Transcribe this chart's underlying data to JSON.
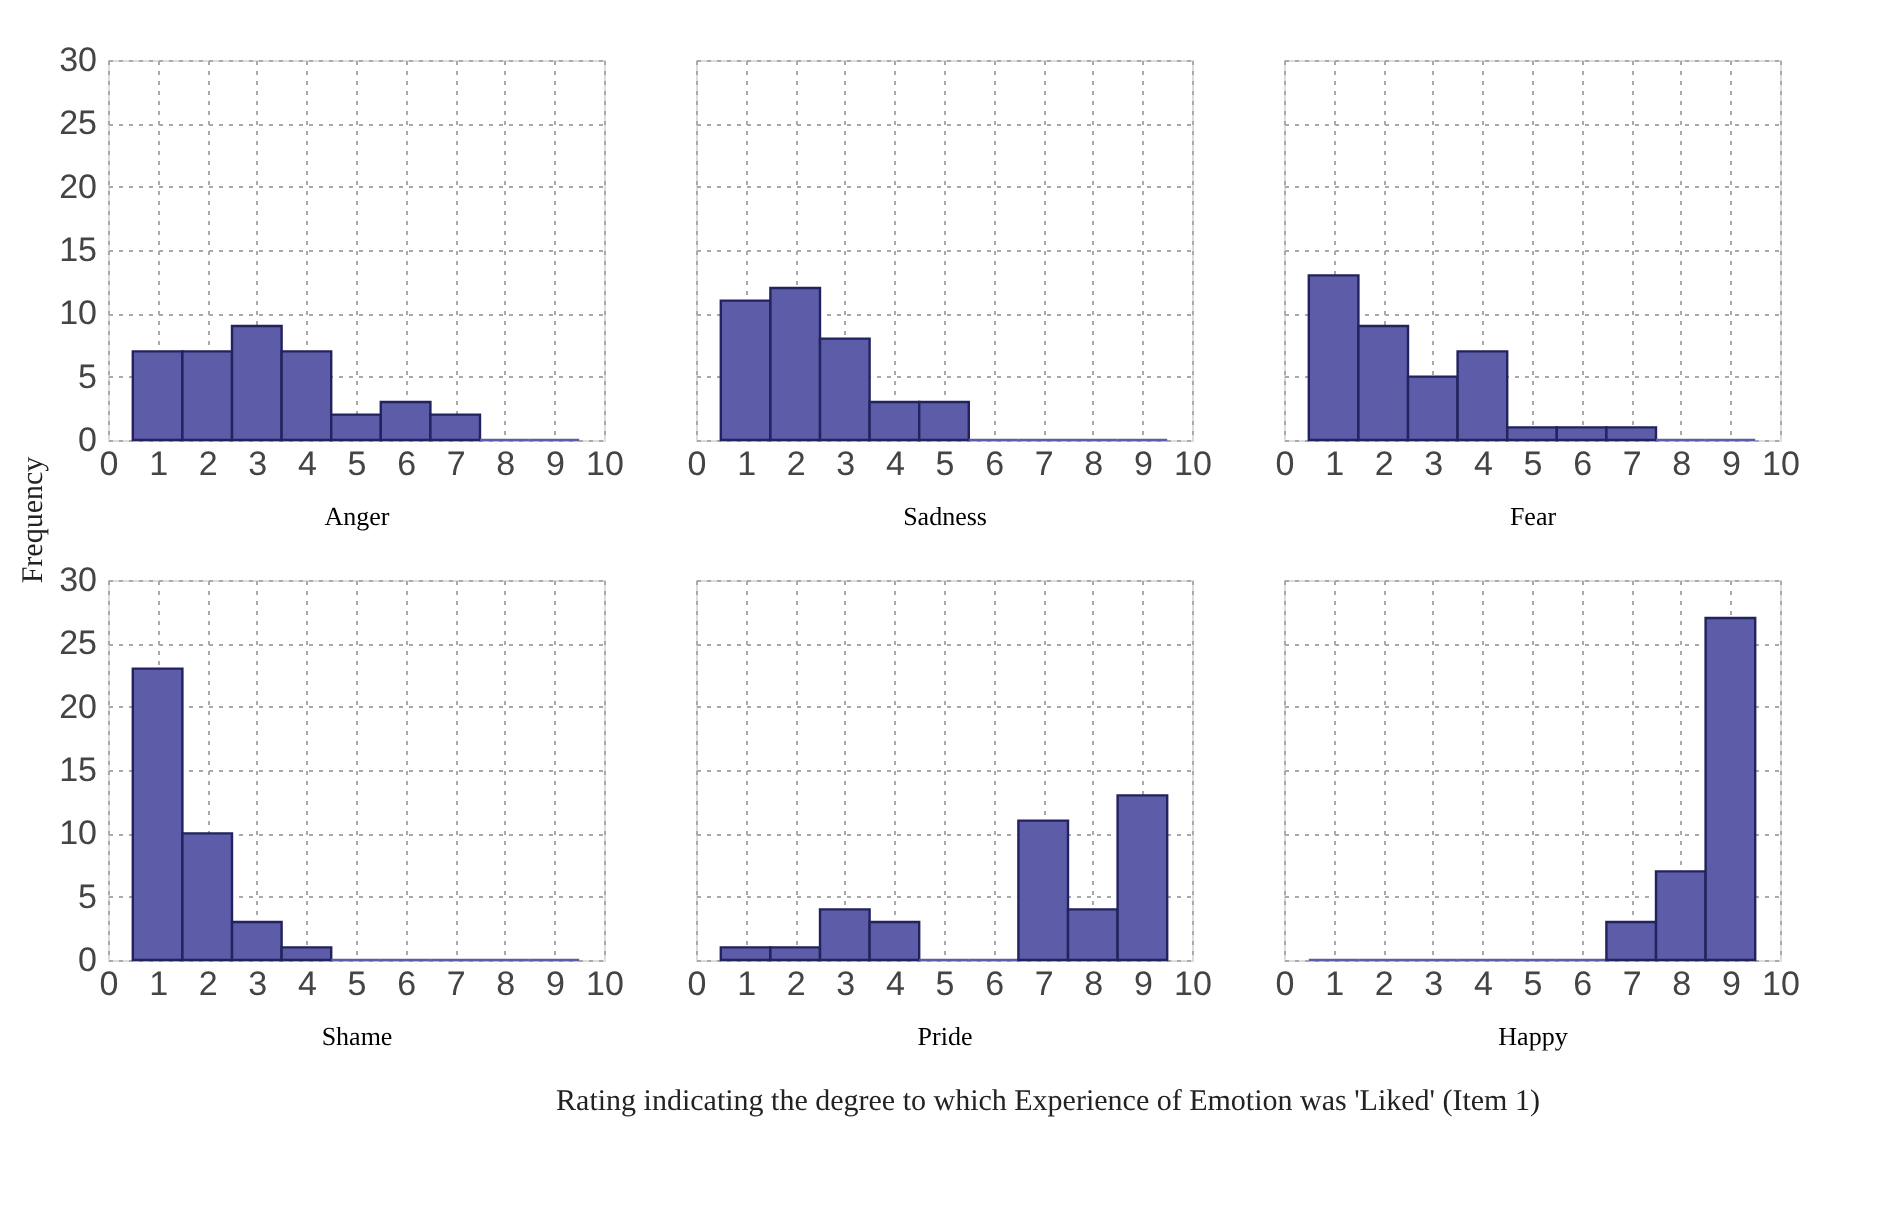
{
  "chart_data": [
    {
      "type": "histogram",
      "xlabel": "Anger",
      "bins": [
        0.5,
        1.5,
        2.5,
        3.5,
        4.5,
        5.5,
        6.5,
        7.5,
        8.5,
        9.5
      ],
      "values": [
        7,
        7,
        9,
        7,
        2,
        3,
        2,
        0,
        0
      ],
      "color": "#5c5ca8",
      "xlim": [
        0,
        10
      ],
      "xticks": [
        0,
        1,
        2,
        3,
        4,
        5,
        6,
        7,
        8,
        9,
        10
      ],
      "ylim": [
        0,
        30
      ],
      "yticks": [
        0,
        5,
        10,
        15,
        20,
        25,
        30
      ],
      "grid": true,
      "annotations": [
        "Frequency",
        "Rating indicating the degree to which Experience of Emotion was 'Liked' (Item 1)"
      ]
    },
    {
      "type": "histogram",
      "xlabel": "Sadness",
      "bins": [
        0.5,
        1.5,
        2.5,
        3.5,
        4.5,
        5.5,
        6.5,
        7.5,
        8.5,
        9.5
      ],
      "values": [
        11,
        12,
        8,
        3,
        3,
        0,
        0,
        0,
        0
      ],
      "color": "#5c5ca8",
      "xlim": [
        0,
        10
      ],
      "xticks": [
        0,
        1,
        2,
        3,
        4,
        5,
        6,
        7,
        8,
        9,
        10
      ],
      "ylim": [
        0,
        30
      ],
      "yticks": [
        0,
        5,
        10,
        15,
        20,
        25,
        30
      ],
      "grid": true,
      "tick_labels": "x"
    },
    {
      "type": "histogram",
      "xlabel": "Fear",
      "bins": [
        0.5,
        1.5,
        2.5,
        3.5,
        4.5,
        5.5,
        6.5,
        7.5,
        8.5,
        9.5
      ],
      "values": [
        13,
        9,
        5,
        7,
        1,
        1,
        1,
        0,
        0
      ],
      "color": "#5c5ca8",
      "xlim": [
        0,
        10
      ],
      "xticks": [
        0,
        1,
        2,
        3,
        4,
        5,
        6,
        7,
        8,
        9,
        10
      ],
      "ylim": [
        0,
        30
      ],
      "yticks": [
        0,
        5,
        10,
        15,
        20,
        25,
        30
      ],
      "grid": true,
      "tick_labels": "x"
    },
    {
      "type": "histogram",
      "xlabel": "Shame",
      "bins": [
        0.5,
        1.5,
        2.5,
        3.5,
        4.5,
        5.5,
        6.5,
        7.5,
        8.5,
        9.5
      ],
      "values": [
        23,
        10,
        3,
        1,
        0,
        0,
        0,
        0,
        0
      ],
      "color": "#5c5ca8",
      "xlim": [
        0,
        10
      ],
      "xticks": [
        0,
        1,
        2,
        3,
        4,
        5,
        6,
        7,
        8,
        9,
        10
      ],
      "ylim": [
        0,
        30
      ],
      "yticks": [
        0,
        5,
        10,
        15,
        20,
        25,
        30
      ],
      "grid": true
    },
    {
      "type": "histogram",
      "xlabel": "Pride",
      "bins": [
        0.5,
        1.5,
        2.5,
        3.5,
        4.5,
        5.5,
        6.5,
        7.5,
        8.5,
        9.5
      ],
      "values": [
        1,
        1,
        4,
        3,
        0,
        0,
        11,
        4,
        13
      ],
      "color": "#5c5ca8",
      "xlim": [
        0,
        10
      ],
      "xticks": [
        0,
        1,
        2,
        3,
        4,
        5,
        6,
        7,
        8,
        9,
        10
      ],
      "ylim": [
        0,
        30
      ],
      "yticks": [
        0,
        5,
        10,
        15,
        20,
        25,
        30
      ],
      "grid": true,
      "tick_labels": "x"
    },
    {
      "type": "histogram",
      "xlabel": "Happy",
      "bins": [
        0.5,
        1.5,
        2.5,
        3.5,
        4.5,
        5.5,
        6.5,
        7.5,
        8.5,
        9.5
      ],
      "values": [
        0,
        0,
        0,
        0,
        0,
        0,
        3,
        7,
        27
      ],
      "color": "#5c5ca8",
      "xlim": [
        0,
        10
      ],
      "xticks": [
        0,
        1,
        2,
        3,
        4,
        5,
        6,
        7,
        8,
        9,
        10
      ],
      "ylim": [
        0,
        30
      ],
      "yticks": [
        0,
        5,
        10,
        15,
        20,
        25,
        30
      ],
      "grid": true,
      "tick_labels": "x"
    }
  ]
}
